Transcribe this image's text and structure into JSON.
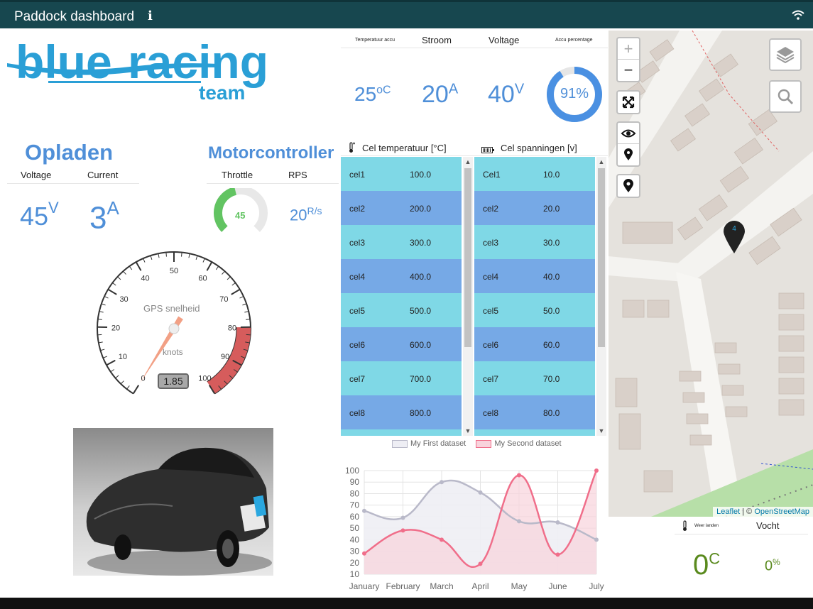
{
  "header": {
    "title": "Paddock dashboard",
    "info_icon": "info-icon",
    "wifi_icon": "wifi-icon"
  },
  "logo": {
    "word1": "blue",
    "word2": "racing",
    "word3": "team",
    "color": "#2a9fd6"
  },
  "charging": {
    "title": "Opladen",
    "voltage_label": "Voltage",
    "current_label": "Current",
    "voltage_value": "45",
    "voltage_unit": "V",
    "current_value": "3",
    "current_unit": "A"
  },
  "motorcontroller": {
    "title": "Motorcontroller",
    "throttle_label": "Throttle",
    "rps_label": "RPS",
    "throttle_value": "45",
    "throttle_fraction": 0.45,
    "rps_value": "20",
    "rps_unit": "R/s"
  },
  "speedometer": {
    "title": "GPS snelheid",
    "unit": "knots",
    "value": "1.85",
    "ticks": [
      "0",
      "10",
      "20",
      "30",
      "40",
      "50",
      "60",
      "70",
      "80",
      "90",
      "100"
    ],
    "needle_value": 1.85
  },
  "accu": {
    "temp_label": "Temperatuur accu",
    "current_label": "Stroom",
    "voltage_label": "Voltage",
    "percent_label": "Accu percentage",
    "temp_value": "25",
    "temp_unit": "oC",
    "current_value": "20",
    "current_unit": "A",
    "voltage_value": "40",
    "voltage_unit": "V",
    "percent_value": "91%",
    "percent_fraction": 0.91
  },
  "cell_temp": {
    "title": "Cel temperatuur [°C]",
    "rows": [
      {
        "name": "cel1",
        "value": "100.0"
      },
      {
        "name": "cel2",
        "value": "200.0"
      },
      {
        "name": "cel3",
        "value": "300.0"
      },
      {
        "name": "cel4",
        "value": "400.0"
      },
      {
        "name": "cel5",
        "value": "500.0"
      },
      {
        "name": "cel6",
        "value": "600.0"
      },
      {
        "name": "cel7",
        "value": "700.0"
      },
      {
        "name": "cel8",
        "value": "800.0"
      }
    ]
  },
  "cell_voltage": {
    "title": "Cel spanningen [v]",
    "rows": [
      {
        "name": "Cel1",
        "value": "10.0"
      },
      {
        "name": "cel2",
        "value": "20.0"
      },
      {
        "name": "cel3",
        "value": "30.0"
      },
      {
        "name": "cel4",
        "value": "40.0"
      },
      {
        "name": "cel5",
        "value": "50.0"
      },
      {
        "name": "cel6",
        "value": "60.0"
      },
      {
        "name": "cel7",
        "value": "70.0"
      },
      {
        "name": "cel8",
        "value": "80.0"
      }
    ]
  },
  "row_colors": [
    "#7fd8e6",
    "#76a9e6"
  ],
  "chart_data": {
    "type": "line",
    "categories": [
      "January",
      "February",
      "March",
      "April",
      "May",
      "June",
      "July"
    ],
    "series": [
      {
        "name": "My First dataset",
        "values": [
          65,
          59,
          90,
          81,
          56,
          55,
          40
        ],
        "color": "#b9b9c9",
        "fill": "#eeeef4"
      },
      {
        "name": "My Second dataset",
        "values": [
          28,
          48,
          40,
          19,
          96,
          27,
          100
        ],
        "color": "#f06e8a",
        "fill": "#f8d3dc"
      }
    ],
    "ylim": [
      10,
      100
    ],
    "yticks": [
      10,
      20,
      30,
      40,
      50,
      60,
      70,
      80,
      90,
      100
    ],
    "grid": true,
    "legend": "top"
  },
  "map": {
    "zoom_in": "+",
    "zoom_out": "−",
    "attribution_leaflet": "Leaflet",
    "attribution_sep": " | © ",
    "attribution_osm": "OpenStreetMap",
    "marker_label": "4"
  },
  "weather": {
    "temp_label": "Weer landen",
    "humidity_label": "Vocht",
    "temp_value": "0",
    "temp_unit": "C",
    "humidity_value": "0",
    "humidity_unit": "%"
  }
}
